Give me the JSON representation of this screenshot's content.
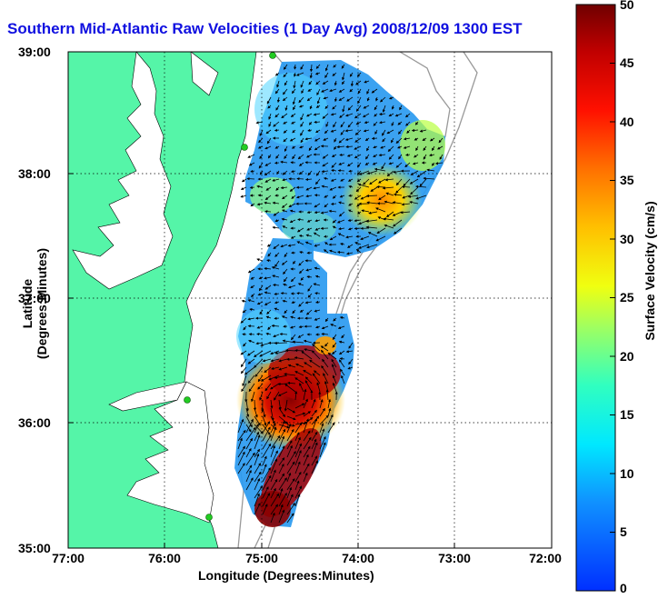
{
  "title": "Southern Mid-Atlantic Raw Velocities (1 Day Avg) 2008/12/09 1300 EST",
  "x_axis": {
    "label": "Longitude (Degrees:Minutes)",
    "ticks": [
      "77:00",
      "76:00",
      "75:00",
      "74:00",
      "73:00",
      "72:00"
    ]
  },
  "y_axis": {
    "label": "Latitude (Degrees:Minutes)",
    "ticks": [
      "39:00",
      "38:00",
      "37:00",
      "36:00",
      "35:00"
    ]
  },
  "colorbar": {
    "label": "Surface Velocity (cm/s)",
    "ticks": [
      "50",
      "45",
      "40",
      "35",
      "30",
      "25",
      "20",
      "15",
      "10",
      "5",
      "0"
    ],
    "min": 0,
    "max": 50
  },
  "colors": {
    "land": "#55f5a8",
    "title": "#1010e0",
    "station": "#22cc22"
  },
  "map": {
    "grid": true,
    "lon_range": [
      "77:00",
      "72:00"
    ],
    "lat_range": [
      "35:00",
      "39:00"
    ]
  }
}
